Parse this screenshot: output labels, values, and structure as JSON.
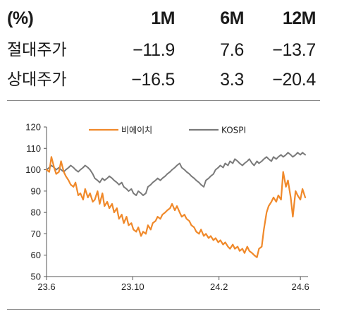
{
  "performance_table": {
    "header": [
      "(%)",
      "1M",
      "6M",
      "12M"
    ],
    "rows": [
      {
        "label": "절대주가",
        "values": [
          "−11.9",
          "7.6",
          "−13.7"
        ]
      },
      {
        "label": "상대주가",
        "values": [
          "−16.5",
          "3.3",
          "−20.4"
        ]
      }
    ]
  },
  "chart_data": {
    "type": "line",
    "x_ticks": [
      "23.6",
      "23.10",
      "24.2",
      "24.6"
    ],
    "y_ticks": [
      50,
      60,
      70,
      80,
      90,
      100,
      110,
      120
    ],
    "ylim": [
      50,
      120
    ],
    "grid": false,
    "legend_position": "top",
    "series": [
      {
        "name": "비에이치",
        "color": "#f0892a",
        "x": [
          "2023-06-01",
          "2023-06-05",
          "2023-06-08",
          "2023-06-12",
          "2023-06-15",
          "2023-06-19",
          "2023-06-22",
          "2023-06-26",
          "2023-06-29",
          "2023-07-03",
          "2023-07-06",
          "2023-07-10",
          "2023-07-13",
          "2023-07-17",
          "2023-07-20",
          "2023-07-24",
          "2023-07-27",
          "2023-07-31",
          "2023-08-03",
          "2023-08-07",
          "2023-08-10",
          "2023-08-14",
          "2023-08-17",
          "2023-08-21",
          "2023-08-24",
          "2023-08-28",
          "2023-08-31",
          "2023-09-04",
          "2023-09-07",
          "2023-09-11",
          "2023-09-14",
          "2023-09-18",
          "2023-09-21",
          "2023-09-25",
          "2023-09-28",
          "2023-10-02",
          "2023-10-05",
          "2023-10-09",
          "2023-10-12",
          "2023-10-16",
          "2023-10-19",
          "2023-10-23",
          "2023-10-26",
          "2023-10-30",
          "2023-11-02",
          "2023-11-06",
          "2023-11-09",
          "2023-11-13",
          "2023-11-16",
          "2023-11-20",
          "2023-11-23",
          "2023-11-27",
          "2023-11-30",
          "2023-12-04",
          "2023-12-07",
          "2023-12-11",
          "2023-12-14",
          "2023-12-18",
          "2023-12-21",
          "2023-12-25",
          "2023-12-28",
          "2024-01-01",
          "2024-01-04",
          "2024-01-08",
          "2024-01-11",
          "2024-01-15",
          "2024-01-18",
          "2024-01-22",
          "2024-01-25",
          "2024-01-29",
          "2024-02-01",
          "2024-02-05",
          "2024-02-08",
          "2024-02-12",
          "2024-02-15",
          "2024-02-19",
          "2024-02-22",
          "2024-02-26",
          "2024-02-29",
          "2024-03-04",
          "2024-03-07",
          "2024-03-11",
          "2024-03-14",
          "2024-03-18",
          "2024-03-21",
          "2024-03-25",
          "2024-03-28",
          "2024-04-01",
          "2024-04-04",
          "2024-04-08",
          "2024-04-11",
          "2024-04-15",
          "2024-04-18",
          "2024-04-22",
          "2024-04-25",
          "2024-04-29",
          "2024-05-02",
          "2024-05-06",
          "2024-05-09",
          "2024-05-13",
          "2024-05-16",
          "2024-05-20",
          "2024-05-23",
          "2024-05-27",
          "2024-05-30",
          "2024-06-03",
          "2024-06-06",
          "2024-06-10"
        ],
        "y": [
          100,
          99,
          106,
          101,
          98,
          99,
          104,
          99,
          97,
          95,
          93,
          92,
          94,
          88,
          89,
          86,
          91,
          87,
          89,
          85,
          86,
          90,
          84,
          89,
          83,
          85,
          82,
          84,
          80,
          82,
          77,
          79,
          75,
          78,
          74,
          75,
          72,
          71,
          73,
          69,
          71,
          70,
          74,
          72,
          75,
          76,
          78,
          77,
          79,
          80,
          81,
          82,
          84,
          81,
          83,
          80,
          78,
          79,
          77,
          76,
          74,
          73,
          71,
          70,
          72,
          69,
          70,
          68,
          69,
          67,
          68,
          66,
          67,
          65,
          66,
          64,
          63,
          65,
          63,
          64,
          62,
          63,
          61,
          64,
          62,
          61,
          60,
          59,
          63,
          64,
          72,
          80,
          83,
          85,
          87,
          85,
          88,
          86,
          99,
          92,
          95,
          87,
          78,
          90,
          88,
          86,
          91,
          87
        ]
      },
      {
        "name": "KOSPI",
        "color": "#7a7a7a",
        "x": [
          "2023-06-01",
          "2023-06-05",
          "2023-06-08",
          "2023-06-12",
          "2023-06-15",
          "2023-06-19",
          "2023-06-22",
          "2023-06-26",
          "2023-06-29",
          "2023-07-03",
          "2023-07-06",
          "2023-07-10",
          "2023-07-13",
          "2023-07-17",
          "2023-07-20",
          "2023-07-24",
          "2023-07-27",
          "2023-07-31",
          "2023-08-03",
          "2023-08-07",
          "2023-08-10",
          "2023-08-14",
          "2023-08-17",
          "2023-08-21",
          "2023-08-24",
          "2023-08-28",
          "2023-08-31",
          "2023-09-04",
          "2023-09-07",
          "2023-09-11",
          "2023-09-14",
          "2023-09-18",
          "2023-09-21",
          "2023-09-25",
          "2023-09-28",
          "2023-10-02",
          "2023-10-05",
          "2023-10-09",
          "2023-10-12",
          "2023-10-16",
          "2023-10-19",
          "2023-10-23",
          "2023-10-26",
          "2023-10-30",
          "2023-11-02",
          "2023-11-06",
          "2023-11-09",
          "2023-11-13",
          "2023-11-16",
          "2023-11-20",
          "2023-11-23",
          "2023-11-27",
          "2023-11-30",
          "2023-12-04",
          "2023-12-07",
          "2023-12-11",
          "2023-12-14",
          "2023-12-18",
          "2023-12-21",
          "2023-12-25",
          "2023-12-28",
          "2024-01-01",
          "2024-01-04",
          "2024-01-08",
          "2024-01-11",
          "2024-01-15",
          "2024-01-18",
          "2024-01-22",
          "2024-01-25",
          "2024-01-29",
          "2024-02-01",
          "2024-02-05",
          "2024-02-08",
          "2024-02-12",
          "2024-02-15",
          "2024-02-19",
          "2024-02-22",
          "2024-02-26",
          "2024-02-29",
          "2024-03-04",
          "2024-03-07",
          "2024-03-11",
          "2024-03-14",
          "2024-03-18",
          "2024-03-21",
          "2024-03-25",
          "2024-03-28",
          "2024-04-01",
          "2024-04-04",
          "2024-04-08",
          "2024-04-11",
          "2024-04-15",
          "2024-04-18",
          "2024-04-22",
          "2024-04-25",
          "2024-04-29",
          "2024-05-02",
          "2024-05-06",
          "2024-05-09",
          "2024-05-13",
          "2024-05-16",
          "2024-05-20",
          "2024-05-23",
          "2024-05-27",
          "2024-05-30",
          "2024-06-03",
          "2024-06-06",
          "2024-06-10"
        ],
        "y": [
          100,
          101,
          102,
          101,
          100,
          101,
          100,
          99,
          100,
          101,
          102,
          101,
          100,
          99,
          100,
          101,
          102,
          101,
          100,
          98,
          96,
          95,
          94,
          96,
          95,
          96,
          97,
          96,
          95,
          94,
          93,
          94,
          92,
          91,
          90,
          91,
          89,
          88,
          90,
          89,
          88,
          89,
          92,
          93,
          94,
          95,
          96,
          95,
          96,
          97,
          98,
          99,
          100,
          101,
          102,
          103,
          101,
          100,
          99,
          98,
          97,
          96,
          95,
          94,
          93,
          92,
          95,
          96,
          97,
          98,
          100,
          101,
          102,
          101,
          103,
          102,
          104,
          103,
          105,
          104,
          103,
          102,
          103,
          104,
          105,
          103,
          102,
          104,
          103,
          104,
          105,
          106,
          105,
          104,
          106,
          105,
          106,
          107,
          106,
          107,
          108,
          107,
          106,
          107,
          108,
          107,
          108,
          107
        ]
      }
    ]
  }
}
